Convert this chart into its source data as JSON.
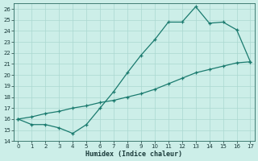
{
  "title": "",
  "xlabel": "Humidex (Indice chaleur)",
  "ylabel": "",
  "bg_color": "#cceee8",
  "line_color": "#1a7a6e",
  "grid_color": "#aad8d0",
  "line1_x": [
    0,
    1,
    2,
    3,
    4,
    5,
    6,
    7,
    8,
    9,
    10,
    11,
    12,
    13,
    14,
    15,
    16,
    17
  ],
  "line1_y": [
    16.0,
    15.5,
    15.5,
    15.2,
    14.7,
    15.5,
    17.0,
    18.5,
    20.2,
    21.8,
    23.2,
    24.8,
    24.8,
    26.2,
    24.7,
    24.8,
    24.1,
    21.2
  ],
  "line2_x": [
    0,
    1,
    2,
    3,
    4,
    5,
    6,
    7,
    8,
    9,
    10,
    11,
    12,
    13,
    14,
    15,
    16,
    17
  ],
  "line2_y": [
    16.0,
    16.2,
    16.5,
    16.7,
    17.0,
    17.2,
    17.5,
    17.7,
    18.0,
    18.3,
    18.7,
    19.2,
    19.7,
    20.2,
    20.5,
    20.8,
    21.1,
    21.2
  ],
  "xlim": [
    -0.3,
    17.3
  ],
  "ylim": [
    14,
    26.5
  ],
  "yticks": [
    14,
    15,
    16,
    17,
    18,
    19,
    20,
    21,
    22,
    23,
    24,
    25,
    26
  ],
  "xticks": [
    0,
    1,
    2,
    3,
    4,
    5,
    6,
    7,
    8,
    9,
    10,
    11,
    12,
    13,
    14,
    15,
    16,
    17
  ]
}
